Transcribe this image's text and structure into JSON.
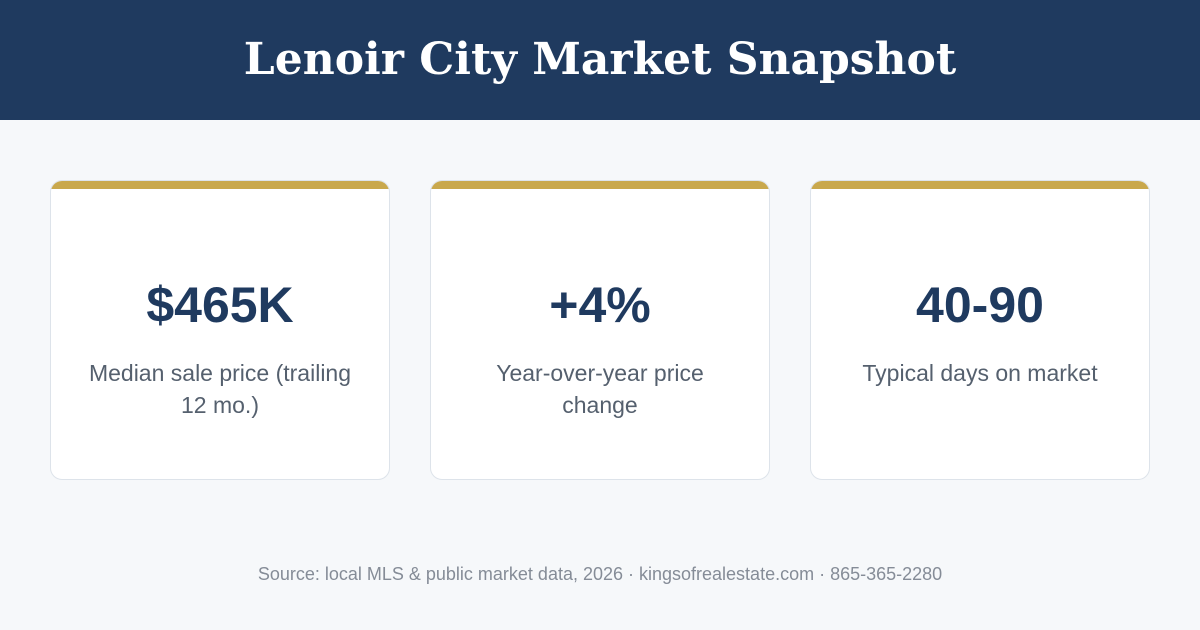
{
  "header": {
    "title": "Lenoir City Market Snapshot"
  },
  "cards": [
    {
      "value": "$465K",
      "label": "Median sale price (trailing 12 mo.)"
    },
    {
      "value": "+4%",
      "label": "Year-over-year price change"
    },
    {
      "value": "40-90",
      "label": "Typical days on market"
    }
  ],
  "footer": {
    "text": "Source: local MLS & public market data, 2026 · kingsofrealestate.com · 865-365-2280"
  },
  "colors": {
    "header_background": "#1f3a5f",
    "accent_bar": "#c9a84c",
    "value_text": "#1f3a5f",
    "page_background": "#f6f8fa"
  }
}
